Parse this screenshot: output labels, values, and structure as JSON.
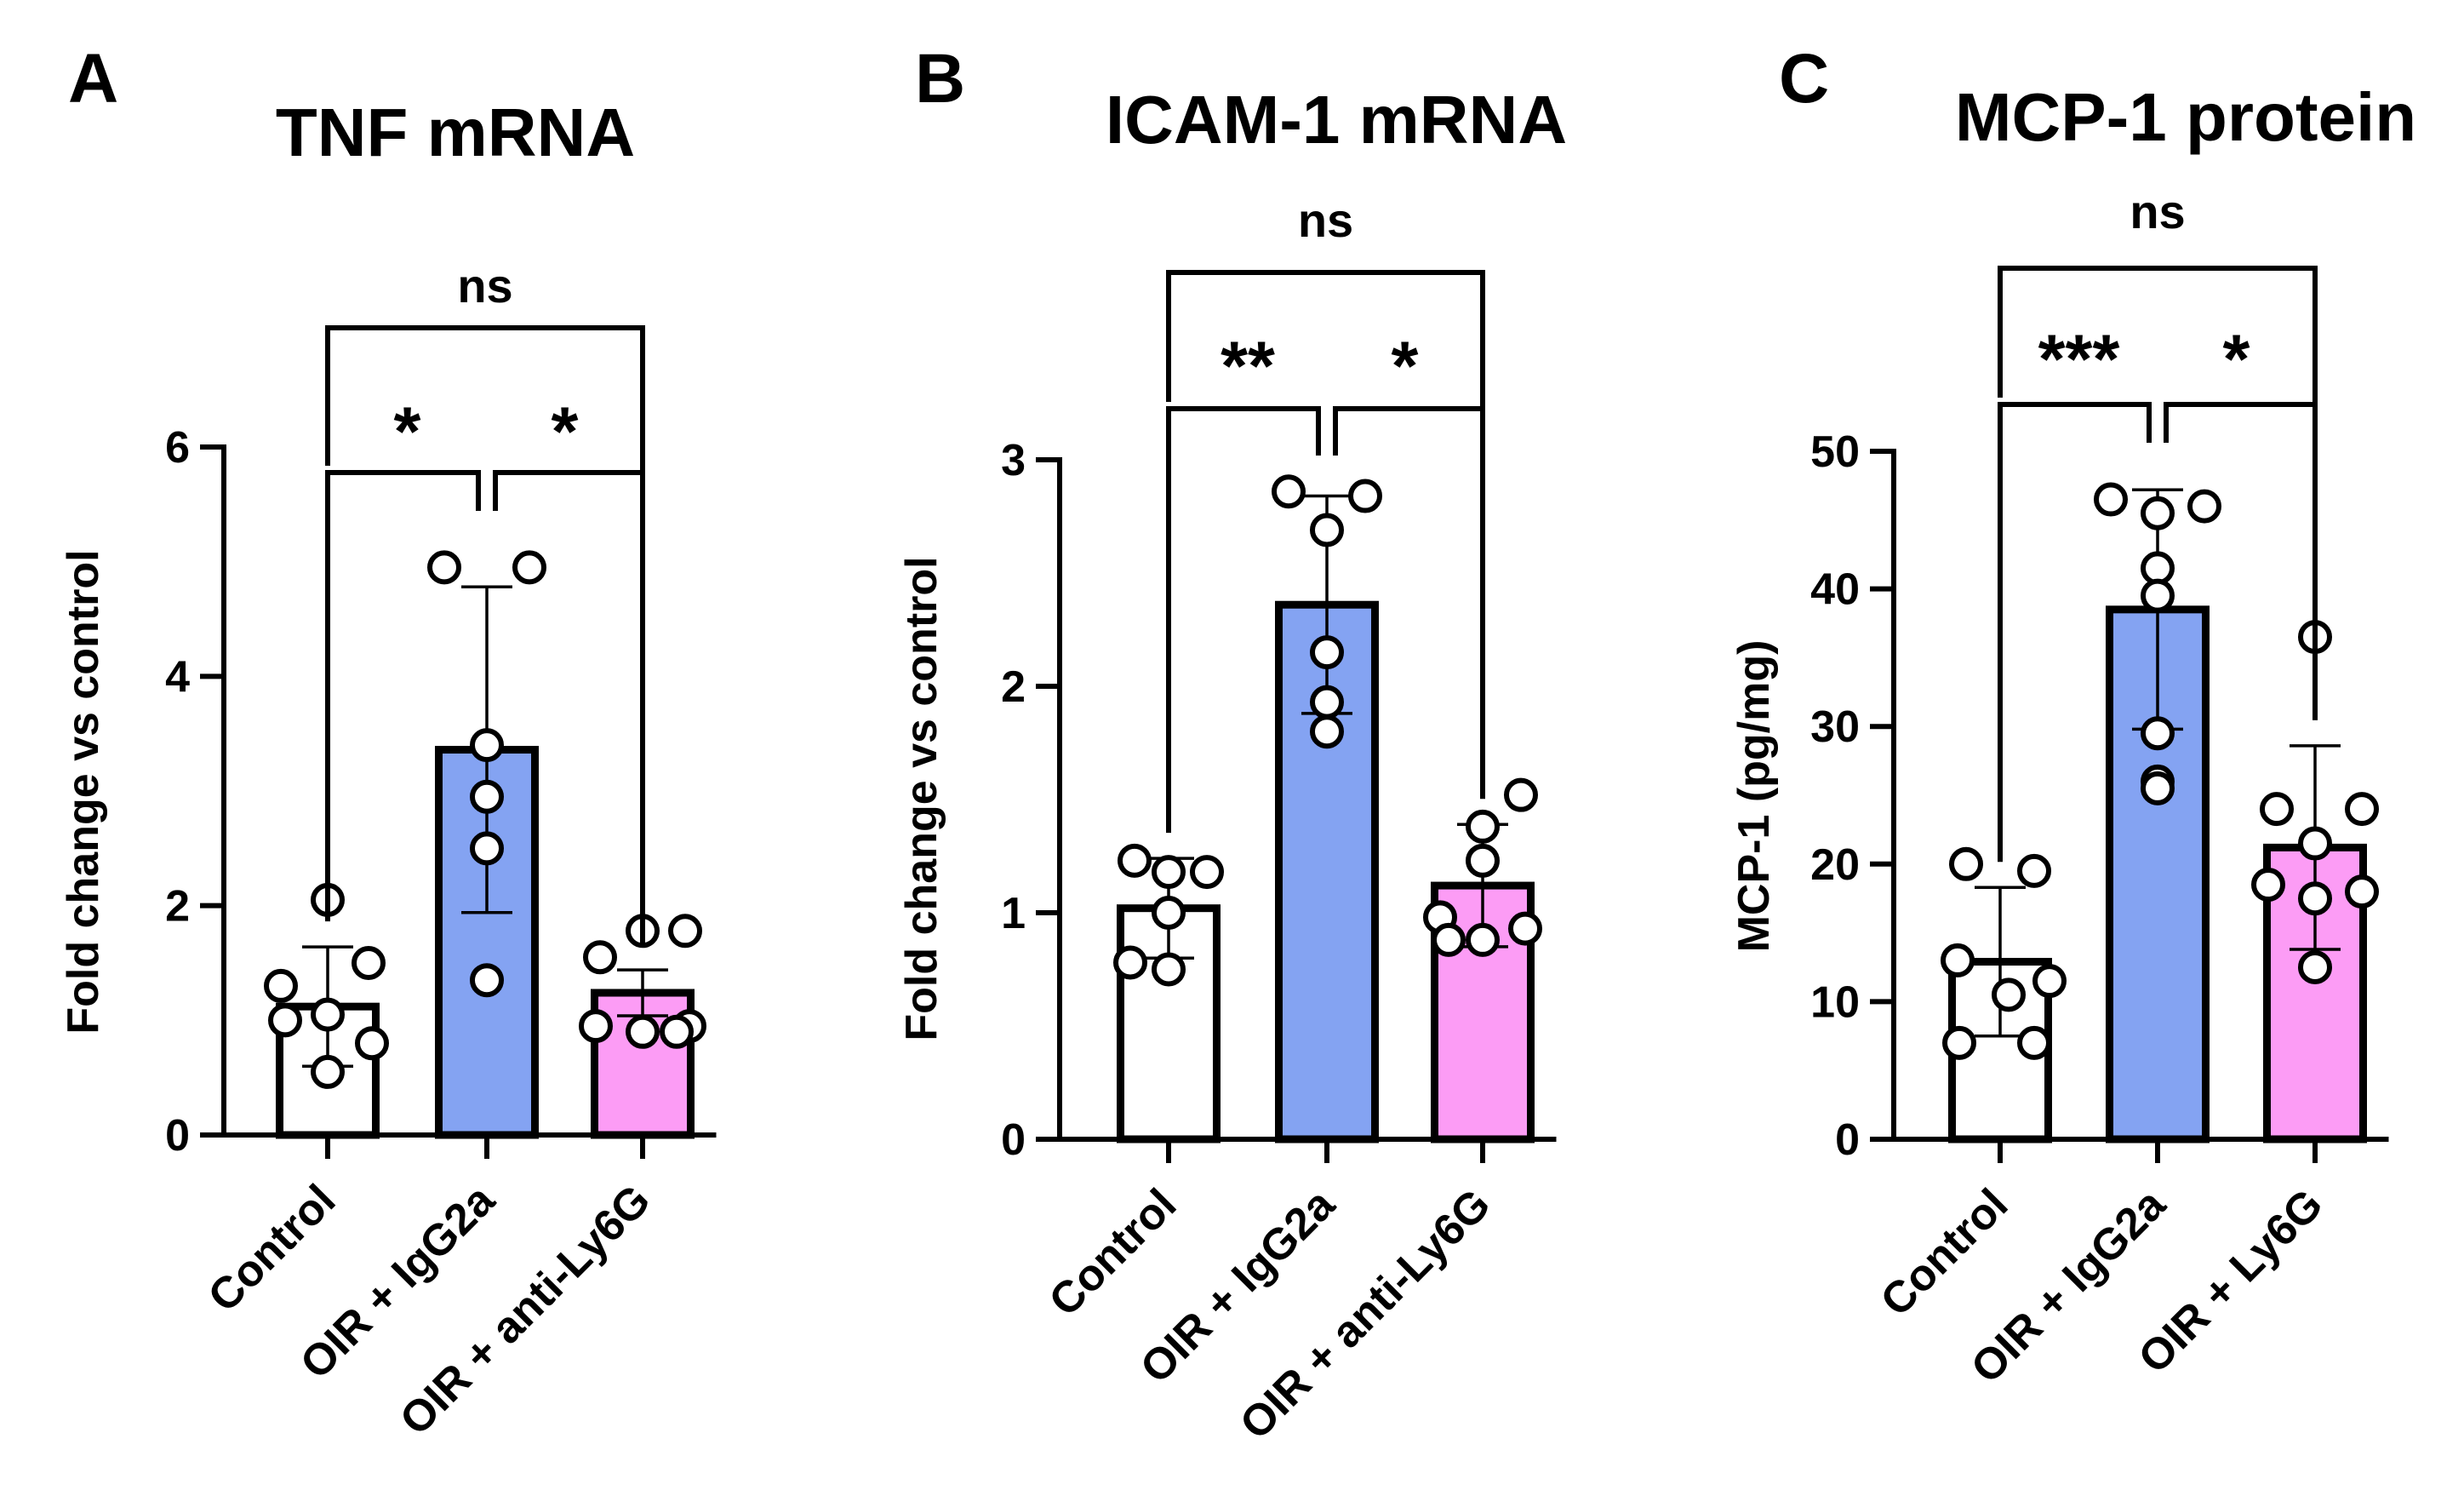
{
  "colors": {
    "control": "#ffffff",
    "igg": "#84a3f2",
    "ly6g": "#fc9cf5",
    "stroke": "#000000"
  },
  "chart_data": [
    {
      "type": "bar",
      "panel": "A",
      "title": "TNF mRNA",
      "ylabel": "Fold change vs control",
      "xlabel": "",
      "ylim": [
        0,
        6
      ],
      "yticks": [
        0,
        2,
        4,
        6
      ],
      "categories": [
        "Control",
        "OIR + IgG2a",
        "OIR + anti-Ly6G"
      ],
      "values": [
        1.12,
        3.36,
        1.24
      ],
      "errors": [
        0.52,
        1.42,
        0.2
      ],
      "points": [
        [
          2.05,
          1.3,
          1.5,
          1.05,
          1.0,
          0.8,
          0.55
        ],
        [
          4.95,
          4.95,
          3.4,
          2.95,
          2.5,
          1.35
        ],
        [
          1.78,
          1.78,
          1.55,
          0.95,
          0.95,
          0.9,
          0.9
        ]
      ],
      "comparisons": [
        {
          "from": 0,
          "to": 1,
          "label": "*",
          "level": 1
        },
        {
          "from": 1,
          "to": 2,
          "label": "*",
          "level": 1
        },
        {
          "from": 0,
          "to": 2,
          "label": "ns",
          "level": 2
        }
      ]
    },
    {
      "type": "bar",
      "panel": "B",
      "title": "ICAM-1 mRNA",
      "ylabel": "Fold change vs control",
      "xlabel": "",
      "ylim": [
        0,
        3
      ],
      "yticks": [
        0,
        1,
        2,
        3
      ],
      "categories": [
        "Control",
        "OIR + IgG2a",
        "OIR + anti-Ly6G"
      ],
      "values": [
        1.02,
        2.36,
        1.12
      ],
      "errors": [
        0.22,
        0.48,
        0.27
      ],
      "points": [
        [
          1.23,
          1.18,
          1.18,
          1.0,
          0.78,
          0.75
        ],
        [
          2.86,
          2.84,
          2.69,
          2.15,
          1.93,
          1.8
        ],
        [
          1.52,
          1.38,
          1.23,
          0.98,
          0.93,
          0.88,
          0.88
        ]
      ],
      "comparisons": [
        {
          "from": 0,
          "to": 1,
          "label": "**",
          "level": 1
        },
        {
          "from": 1,
          "to": 2,
          "label": "*",
          "level": 1
        },
        {
          "from": 0,
          "to": 2,
          "label": "ns",
          "level": 2
        }
      ]
    },
    {
      "type": "bar",
      "panel": "C",
      "title": "MCP-1 protein",
      "ylabel": "MCP-1 (pg/mg)",
      "xlabel": "",
      "ylim": [
        0,
        50
      ],
      "yticks": [
        0,
        10,
        20,
        30,
        40,
        50
      ],
      "categories": [
        "Control",
        "OIR + IgG2a",
        "OIR + Ly6G"
      ],
      "values": [
        12.9,
        38.5,
        21.2
      ],
      "errors": [
        5.4,
        8.7,
        7.4
      ],
      "points": [
        [
          20.0,
          19.5,
          13.0,
          11.5,
          10.5,
          7.0,
          7.0
        ],
        [
          46.5,
          46.0,
          45.5,
          41.5,
          39.5,
          29.5,
          26.0,
          25.5
        ],
        [
          36.5,
          24.0,
          24.0,
          21.5,
          18.5,
          18.0,
          17.5,
          12.5
        ]
      ],
      "comparisons": [
        {
          "from": 0,
          "to": 1,
          "label": "***",
          "level": 1
        },
        {
          "from": 1,
          "to": 2,
          "label": "*",
          "level": 1
        },
        {
          "from": 0,
          "to": 2,
          "label": "ns",
          "level": 2
        }
      ]
    }
  ]
}
